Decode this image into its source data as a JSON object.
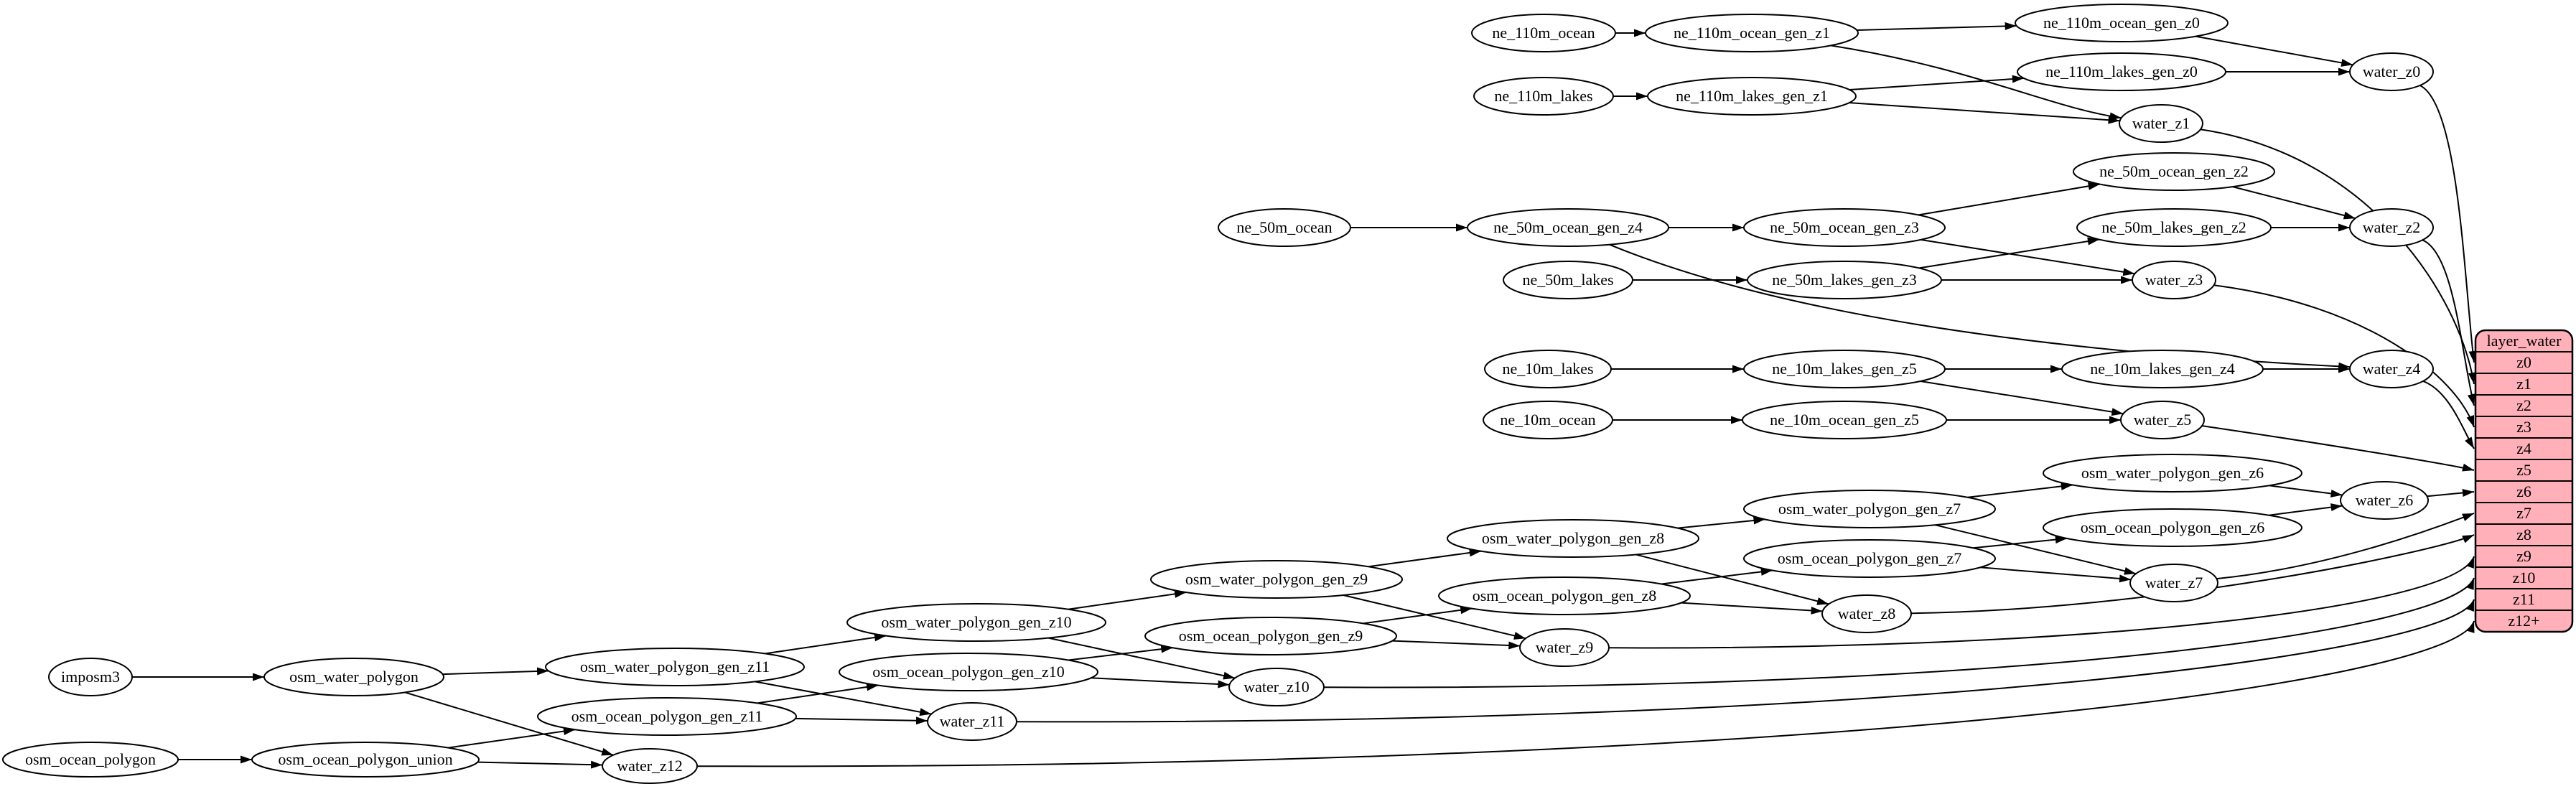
{
  "diagram": {
    "colors": {
      "table_fill": "#ffb0b9",
      "node_fill": "#ffffff",
      "stroke": "#000000",
      "edge": "#000000",
      "background": "#ffffff"
    },
    "table": {
      "title": "layer_water",
      "rows": [
        "z0",
        "z1",
        "z2",
        "z3",
        "z4",
        "z5",
        "z6",
        "z7",
        "z8",
        "z9",
        "z10",
        "z11",
        "z12+"
      ]
    },
    "nodes": [
      {
        "id": "imposm3",
        "label": "imposm3"
      },
      {
        "id": "osm_water_polygon",
        "label": "osm_water_polygon"
      },
      {
        "id": "osm_ocean_polygon",
        "label": "osm_ocean_polygon"
      },
      {
        "id": "osm_ocean_polygon_union",
        "label": "osm_ocean_polygon_union"
      },
      {
        "id": "osm_water_polygon_gen_z11",
        "label": "osm_water_polygon_gen_z11"
      },
      {
        "id": "osm_ocean_polygon_gen_z11",
        "label": "osm_ocean_polygon_gen_z11"
      },
      {
        "id": "osm_water_polygon_gen_z10",
        "label": "osm_water_polygon_gen_z10"
      },
      {
        "id": "osm_ocean_polygon_gen_z10",
        "label": "osm_ocean_polygon_gen_z10"
      },
      {
        "id": "osm_water_polygon_gen_z9",
        "label": "osm_water_polygon_gen_z9"
      },
      {
        "id": "osm_ocean_polygon_gen_z9",
        "label": "osm_ocean_polygon_gen_z9"
      },
      {
        "id": "osm_water_polygon_gen_z8",
        "label": "osm_water_polygon_gen_z8"
      },
      {
        "id": "osm_ocean_polygon_gen_z8",
        "label": "osm_ocean_polygon_gen_z8"
      },
      {
        "id": "osm_water_polygon_gen_z7",
        "label": "osm_water_polygon_gen_z7"
      },
      {
        "id": "osm_ocean_polygon_gen_z7",
        "label": "osm_ocean_polygon_gen_z7"
      },
      {
        "id": "osm_water_polygon_gen_z6",
        "label": "osm_water_polygon_gen_z6"
      },
      {
        "id": "osm_ocean_polygon_gen_z6",
        "label": "osm_ocean_polygon_gen_z6"
      },
      {
        "id": "water_z12",
        "label": "water_z12"
      },
      {
        "id": "water_z11",
        "label": "water_z11"
      },
      {
        "id": "water_z10",
        "label": "water_z10"
      },
      {
        "id": "water_z9",
        "label": "water_z9"
      },
      {
        "id": "water_z8",
        "label": "water_z8"
      },
      {
        "id": "water_z7",
        "label": "water_z7"
      },
      {
        "id": "water_z6",
        "label": "water_z6"
      },
      {
        "id": "ne_110m_ocean",
        "label": "ne_110m_ocean"
      },
      {
        "id": "ne_110m_ocean_gen_z1",
        "label": "ne_110m_ocean_gen_z1"
      },
      {
        "id": "ne_110m_ocean_gen_z0",
        "label": "ne_110m_ocean_gen_z0"
      },
      {
        "id": "ne_110m_lakes",
        "label": "ne_110m_lakes"
      },
      {
        "id": "ne_110m_lakes_gen_z1",
        "label": "ne_110m_lakes_gen_z1"
      },
      {
        "id": "ne_110m_lakes_gen_z0",
        "label": "ne_110m_lakes_gen_z0"
      },
      {
        "id": "water_z0",
        "label": "water_z0"
      },
      {
        "id": "water_z1",
        "label": "water_z1"
      },
      {
        "id": "ne_50m_ocean",
        "label": "ne_50m_ocean"
      },
      {
        "id": "ne_50m_ocean_gen_z4",
        "label": "ne_50m_ocean_gen_z4"
      },
      {
        "id": "ne_50m_ocean_gen_z3",
        "label": "ne_50m_ocean_gen_z3"
      },
      {
        "id": "ne_50m_ocean_gen_z2",
        "label": "ne_50m_ocean_gen_z2"
      },
      {
        "id": "ne_50m_lakes",
        "label": "ne_50m_lakes"
      },
      {
        "id": "ne_50m_lakes_gen_z3",
        "label": "ne_50m_lakes_gen_z3"
      },
      {
        "id": "ne_50m_lakes_gen_z2",
        "label": "ne_50m_lakes_gen_z2"
      },
      {
        "id": "water_z2",
        "label": "water_z2"
      },
      {
        "id": "water_z3",
        "label": "water_z3"
      },
      {
        "id": "ne_10m_lakes",
        "label": "ne_10m_lakes"
      },
      {
        "id": "ne_10m_lakes_gen_z5",
        "label": "ne_10m_lakes_gen_z5"
      },
      {
        "id": "ne_10m_lakes_gen_z4",
        "label": "ne_10m_lakes_gen_z4"
      },
      {
        "id": "ne_10m_ocean",
        "label": "ne_10m_ocean"
      },
      {
        "id": "ne_10m_ocean_gen_z5",
        "label": "ne_10m_ocean_gen_z5"
      },
      {
        "id": "water_z4",
        "label": "water_z4"
      },
      {
        "id": "water_z5",
        "label": "water_z5"
      }
    ],
    "edges": [
      [
        "ne_110m_ocean",
        "ne_110m_ocean_gen_z1"
      ],
      [
        "ne_110m_ocean_gen_z1",
        "ne_110m_ocean_gen_z0"
      ],
      [
        "ne_110m_ocean_gen_z1",
        "water_z1"
      ],
      [
        "ne_110m_lakes",
        "ne_110m_lakes_gen_z1"
      ],
      [
        "ne_110m_lakes_gen_z1",
        "ne_110m_lakes_gen_z0"
      ],
      [
        "ne_110m_lakes_gen_z1",
        "water_z1"
      ],
      [
        "ne_110m_ocean_gen_z0",
        "water_z0"
      ],
      [
        "ne_110m_lakes_gen_z0",
        "water_z0"
      ],
      [
        "ne_50m_ocean",
        "ne_50m_ocean_gen_z4"
      ],
      [
        "ne_50m_ocean_gen_z4",
        "ne_50m_ocean_gen_z3"
      ],
      [
        "ne_50m_ocean_gen_z4",
        "water_z4"
      ],
      [
        "ne_50m_ocean_gen_z3",
        "ne_50m_ocean_gen_z2"
      ],
      [
        "ne_50m_ocean_gen_z3",
        "water_z3"
      ],
      [
        "ne_50m_ocean_gen_z2",
        "water_z2"
      ],
      [
        "ne_50m_lakes",
        "ne_50m_lakes_gen_z3"
      ],
      [
        "ne_50m_lakes_gen_z3",
        "ne_50m_lakes_gen_z2"
      ],
      [
        "ne_50m_lakes_gen_z3",
        "water_z3"
      ],
      [
        "ne_50m_lakes_gen_z2",
        "water_z2"
      ],
      [
        "ne_10m_lakes",
        "ne_10m_lakes_gen_z5"
      ],
      [
        "ne_10m_lakes_gen_z5",
        "ne_10m_lakes_gen_z4"
      ],
      [
        "ne_10m_lakes_gen_z5",
        "water_z5"
      ],
      [
        "ne_10m_lakes_gen_z4",
        "water_z4"
      ],
      [
        "ne_10m_ocean",
        "ne_10m_ocean_gen_z5"
      ],
      [
        "ne_10m_ocean_gen_z5",
        "water_z5"
      ],
      [
        "imposm3",
        "osm_water_polygon"
      ],
      [
        "osm_water_polygon",
        "osm_water_polygon_gen_z11"
      ],
      [
        "osm_water_polygon",
        "water_z12"
      ],
      [
        "osm_ocean_polygon",
        "osm_ocean_polygon_union"
      ],
      [
        "osm_ocean_polygon_union",
        "osm_ocean_polygon_gen_z11"
      ],
      [
        "osm_ocean_polygon_union",
        "water_z12"
      ],
      [
        "osm_water_polygon_gen_z11",
        "osm_water_polygon_gen_z10"
      ],
      [
        "osm_water_polygon_gen_z11",
        "water_z11"
      ],
      [
        "osm_ocean_polygon_gen_z11",
        "osm_ocean_polygon_gen_z10"
      ],
      [
        "osm_ocean_polygon_gen_z11",
        "water_z11"
      ],
      [
        "osm_water_polygon_gen_z10",
        "osm_water_polygon_gen_z9"
      ],
      [
        "osm_water_polygon_gen_z10",
        "water_z10"
      ],
      [
        "osm_ocean_polygon_gen_z10",
        "osm_ocean_polygon_gen_z9"
      ],
      [
        "osm_ocean_polygon_gen_z10",
        "water_z10"
      ],
      [
        "osm_water_polygon_gen_z9",
        "osm_water_polygon_gen_z8"
      ],
      [
        "osm_water_polygon_gen_z9",
        "water_z9"
      ],
      [
        "osm_ocean_polygon_gen_z9",
        "osm_ocean_polygon_gen_z8"
      ],
      [
        "osm_ocean_polygon_gen_z9",
        "water_z9"
      ],
      [
        "osm_water_polygon_gen_z8",
        "osm_water_polygon_gen_z7"
      ],
      [
        "osm_water_polygon_gen_z8",
        "water_z8"
      ],
      [
        "osm_ocean_polygon_gen_z8",
        "osm_ocean_polygon_gen_z7"
      ],
      [
        "osm_ocean_polygon_gen_z8",
        "water_z8"
      ],
      [
        "osm_water_polygon_gen_z7",
        "osm_water_polygon_gen_z6"
      ],
      [
        "osm_water_polygon_gen_z7",
        "water_z7"
      ],
      [
        "osm_ocean_polygon_gen_z7",
        "osm_ocean_polygon_gen_z6"
      ],
      [
        "osm_ocean_polygon_gen_z7",
        "water_z7"
      ],
      [
        "osm_water_polygon_gen_z6",
        "water_z6"
      ],
      [
        "osm_ocean_polygon_gen_z6",
        "water_z6"
      ],
      [
        "water_z0",
        "row:z0"
      ],
      [
        "water_z1",
        "row:z1"
      ],
      [
        "water_z2",
        "row:z2"
      ],
      [
        "water_z3",
        "row:z3"
      ],
      [
        "water_z4",
        "row:z4"
      ],
      [
        "water_z5",
        "row:z5"
      ],
      [
        "water_z6",
        "row:z6"
      ],
      [
        "water_z7",
        "row:z7"
      ],
      [
        "water_z8",
        "row:z8"
      ],
      [
        "water_z9",
        "row:z9"
      ],
      [
        "water_z10",
        "row:z10"
      ],
      [
        "water_z11",
        "row:z11"
      ],
      [
        "water_z12",
        "row:z12+"
      ]
    ]
  }
}
